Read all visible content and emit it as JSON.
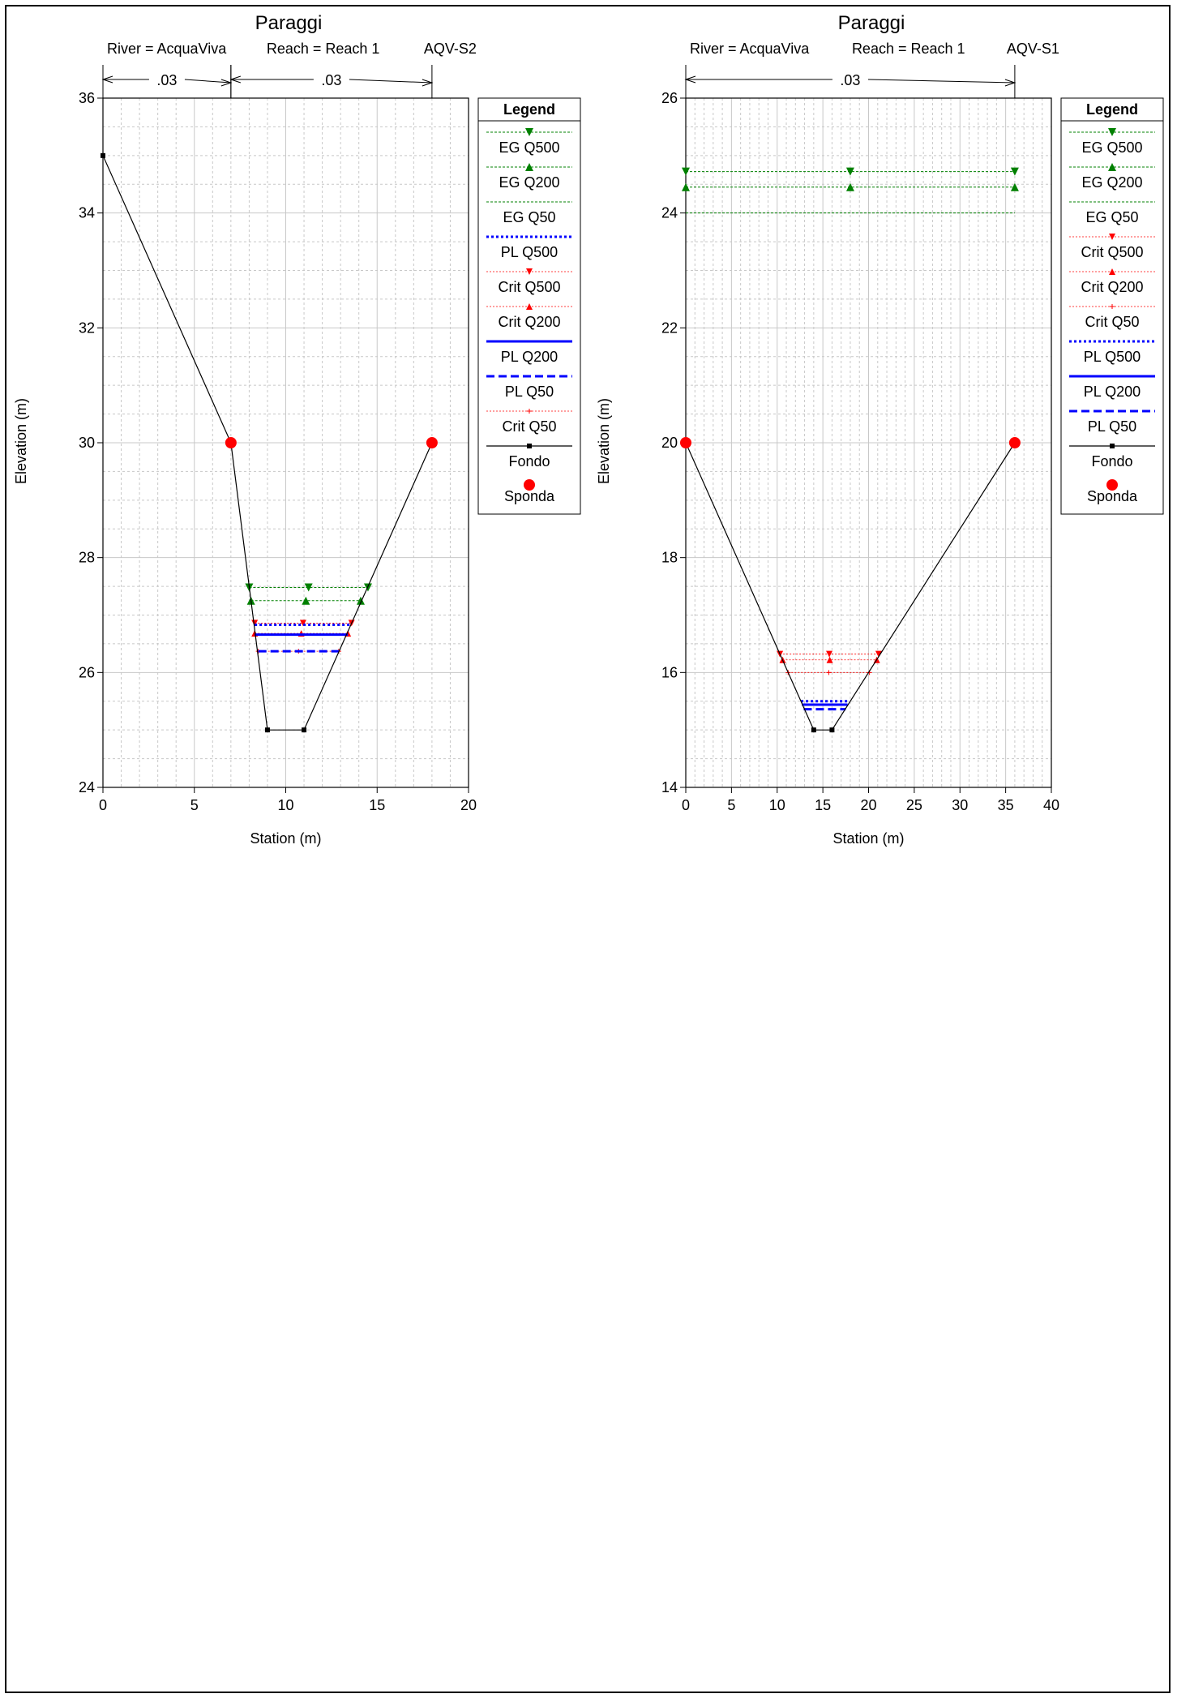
{
  "colors": {
    "eg": "#008000",
    "crit": "#ff0000",
    "pl": "#0000ff",
    "fondo": "#000000",
    "sponda": "#ff0000",
    "grid": "#c8c8c8"
  },
  "chart_data": [
    {
      "type": "line",
      "title": "Paraggi",
      "subtitle": {
        "river": "River = AcquaViva",
        "reach": "Reach = Reach 1",
        "station_id": "AQV-S2"
      },
      "xlabel": "Station (m)",
      "ylabel": "Elevation (m)",
      "xlim": [
        0,
        20
      ],
      "ylim": [
        24,
        36
      ],
      "xticks": [
        0,
        5,
        10,
        15,
        20
      ],
      "yticks": [
        24,
        26,
        28,
        30,
        32,
        34,
        36
      ],
      "grid": true,
      "roughness": [
        {
          "from": 0,
          "to": 7,
          "label": ".03"
        },
        {
          "from": 7,
          "to": 18,
          "label": ".03"
        }
      ],
      "legend": {
        "title": "Legend",
        "position": "right",
        "entries": [
          {
            "label": "EG Q500",
            "key": "eg500"
          },
          {
            "label": "EG Q200",
            "key": "eg200"
          },
          {
            "label": "EG Q50",
            "key": "eg50"
          },
          {
            "label": "PL Q500",
            "key": "pl500"
          },
          {
            "label": "Crit Q500",
            "key": "crit500"
          },
          {
            "label": "Crit Q200",
            "key": "crit200"
          },
          {
            "label": "PL Q200",
            "key": "pl200"
          },
          {
            "label": "PL Q50",
            "key": "pl50"
          },
          {
            "label": "Crit Q50",
            "key": "crit50"
          },
          {
            "label": "Fondo",
            "key": "fondo"
          },
          {
            "label": "Sponda",
            "key": "sponda"
          }
        ]
      },
      "ground": {
        "x": [
          0,
          7,
          9,
          11,
          18
        ],
        "y": [
          35,
          30,
          25,
          25,
          30
        ]
      },
      "banks": [
        {
          "x": 7,
          "y": 30
        },
        {
          "x": 18,
          "y": 30
        }
      ],
      "water_surfaces": [
        {
          "key": "eg500",
          "y": 27.48,
          "x": [
            8.0,
            14.5
          ]
        },
        {
          "key": "eg200",
          "y": 27.25,
          "x": [
            8.1,
            14.1
          ]
        },
        {
          "key": "crit500",
          "y": 26.86,
          "x": [
            8.3,
            13.6
          ]
        },
        {
          "key": "pl500",
          "y": 26.83,
          "x": [
            8.3,
            13.6
          ]
        },
        {
          "key": "crit200",
          "y": 26.68,
          "x": [
            8.3,
            13.4
          ]
        },
        {
          "key": "pl200",
          "y": 26.66,
          "x": [
            8.3,
            13.4
          ]
        },
        {
          "key": "crit50",
          "y": 26.37,
          "x": [
            8.5,
            12.9
          ]
        },
        {
          "key": "pl50",
          "y": 26.37,
          "x": [
            8.5,
            12.9
          ]
        }
      ]
    },
    {
      "type": "line",
      "title": "Paraggi",
      "subtitle": {
        "river": "River = AcquaViva",
        "reach": "Reach = Reach 1",
        "station_id": "AQV-S1"
      },
      "xlabel": "Station (m)",
      "ylabel": "Elevation (m)",
      "xlim": [
        0,
        40
      ],
      "ylim": [
        14,
        26
      ],
      "xticks": [
        0,
        5,
        10,
        15,
        20,
        25,
        30,
        35,
        40
      ],
      "yticks": [
        14,
        16,
        18,
        20,
        22,
        24,
        26
      ],
      "grid": true,
      "roughness": [
        {
          "from": 0,
          "to": 36,
          "label": ".03"
        }
      ],
      "legend": {
        "title": "Legend",
        "position": "right",
        "entries": [
          {
            "label": "EG Q500",
            "key": "eg500"
          },
          {
            "label": "EG Q200",
            "key": "eg200"
          },
          {
            "label": "EG Q50",
            "key": "eg50"
          },
          {
            "label": "Crit Q500",
            "key": "crit500"
          },
          {
            "label": "Crit Q200",
            "key": "crit200"
          },
          {
            "label": "Crit Q50",
            "key": "crit50"
          },
          {
            "label": "PL Q500",
            "key": "pl500"
          },
          {
            "label": "PL Q200",
            "key": "pl200"
          },
          {
            "label": "PL Q50",
            "key": "pl50"
          },
          {
            "label": "Fondo",
            "key": "fondo"
          },
          {
            "label": "Sponda",
            "key": "sponda"
          }
        ]
      },
      "ground": {
        "x": [
          0,
          14,
          16,
          36
        ],
        "y": [
          20,
          15,
          15,
          20
        ]
      },
      "banks": [
        {
          "x": 0,
          "y": 20
        },
        {
          "x": 36,
          "y": 20
        }
      ],
      "water_surfaces": [
        {
          "key": "eg500",
          "y": 24.72,
          "x": [
            0,
            36
          ]
        },
        {
          "key": "eg200",
          "y": 24.45,
          "x": [
            0,
            36
          ]
        },
        {
          "key": "eg50",
          "y": 24.0,
          "x": [
            0,
            36
          ]
        },
        {
          "key": "crit500",
          "y": 16.32,
          "x": [
            10.3,
            21.1
          ]
        },
        {
          "key": "crit200",
          "y": 16.22,
          "x": [
            10.6,
            20.9
          ]
        },
        {
          "key": "crit50",
          "y": 16.0,
          "x": [
            11.2,
            20.1
          ]
        },
        {
          "key": "pl500",
          "y": 15.5,
          "x": [
            12.6,
            17.8
          ]
        },
        {
          "key": "pl200",
          "y": 15.44,
          "x": [
            12.7,
            17.7
          ]
        },
        {
          "key": "pl50",
          "y": 15.36,
          "x": [
            12.9,
            17.5
          ]
        }
      ]
    }
  ]
}
